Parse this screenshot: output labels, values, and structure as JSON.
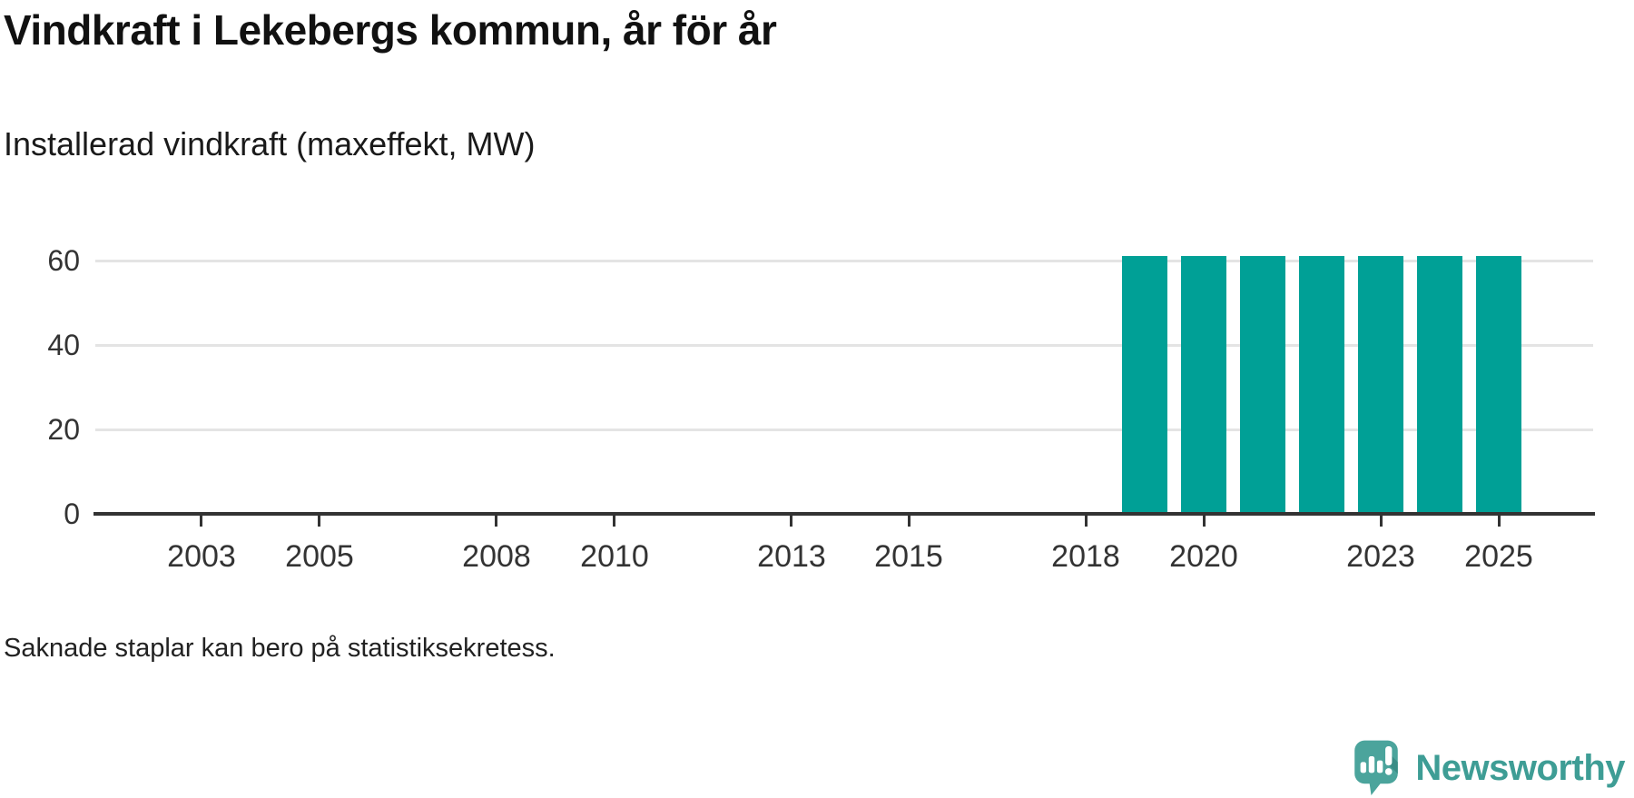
{
  "header": {
    "title": "Vindkraft i Lekebergs kommun, år för år",
    "subtitle": "Installerad vindkraft (maxeffekt, MW)"
  },
  "footnote": "Saknade staplar kan bero på statistiksekretess.",
  "branding": {
    "logo_text": "Newsworthy",
    "logo_text_color": "#3e9d95",
    "logo_mark_color": "#4ba49c",
    "logo_mark_shade_color": "#3a8d86"
  },
  "chart_data": {
    "type": "bar",
    "title": "Vindkraft i Lekebergs kommun, år för år",
    "subtitle": "Installerad vindkraft (maxeffekt, MW)",
    "xlabel": "",
    "ylabel": "Installerad vindkraft (maxeffekt, MW)",
    "x": [
      2019,
      2020,
      2021,
      2022,
      2023,
      2024,
      2025
    ],
    "values": [
      61,
      61,
      61,
      61,
      61,
      61,
      61
    ],
    "x_tick_labels": [
      2003,
      2005,
      2008,
      2010,
      2013,
      2015,
      2018,
      2020,
      2023,
      2025
    ],
    "y_tick_labels": [
      0,
      20,
      40,
      60
    ],
    "x_domain": [
      2001.2,
      2026.6
    ],
    "ylim": [
      0,
      65
    ],
    "grid": "horizontal",
    "legend": "none",
    "bar_color": "#00a096",
    "grid_color": "#e4e4e4",
    "axis_color": "#333333",
    "missing_bars_note": "Saknade staplar kan bero på statistiksekretess."
  }
}
